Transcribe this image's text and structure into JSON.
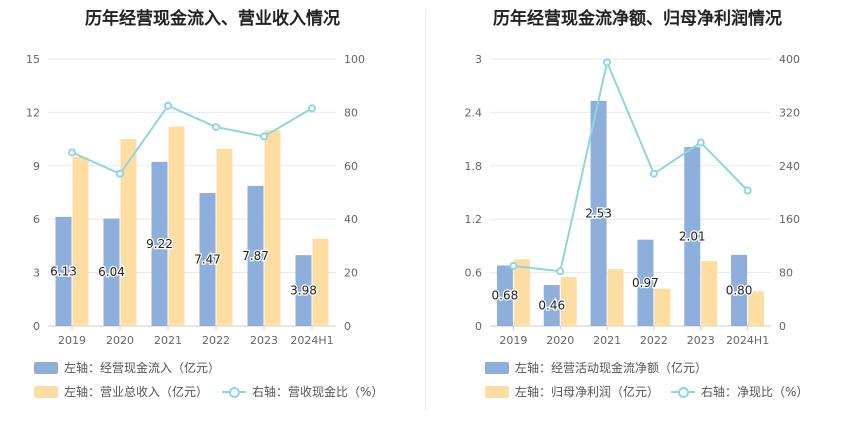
{
  "colors": {
    "bar_primary": "#8eaedc",
    "bar_secondary": "#fedda3",
    "line": "#8fd6dd",
    "grid": "#e6e9f0",
    "axis_text": "#666666"
  },
  "chart_data": [
    {
      "type": "bar",
      "title": "历年经营现金流入、营业收入情况",
      "categories": [
        "2019",
        "2020",
        "2021",
        "2022",
        "2023",
        "2024H1"
      ],
      "left_axis": {
        "min": 0,
        "max": 15,
        "ticks": [
          "0",
          "3",
          "6",
          "9",
          "12",
          "15"
        ]
      },
      "right_axis": {
        "min": 0,
        "max": 100,
        "ticks": [
          "0",
          "20",
          "40",
          "60",
          "80",
          "100"
        ]
      },
      "series": [
        {
          "name": "左轴：经营现金流入（亿元）",
          "kind": "bar",
          "axis": "left",
          "color": "#8eaedc",
          "values": [
            6.13,
            6.04,
            9.22,
            7.47,
            7.87,
            3.98
          ],
          "labels": [
            "6.13",
            "6.04",
            "9.22",
            "7.47",
            "7.87",
            "3.98"
          ]
        },
        {
          "name": "左轴：营业总收入（亿元）",
          "kind": "bar",
          "axis": "left",
          "color": "#fedda3",
          "values": [
            9.5,
            10.5,
            11.2,
            9.95,
            11.0,
            4.9
          ]
        },
        {
          "name": "右轴：营收现金比（%）",
          "kind": "line",
          "axis": "right",
          "color": "#8fd6dd",
          "values": [
            65,
            57,
            82.5,
            74.5,
            71,
            81.5
          ]
        }
      ],
      "legend": [
        "左轴：经营现金流入（亿元）",
        "左轴：营业总收入（亿元）",
        "右轴：营收现金比（%）"
      ],
      "legend_position": "bottom",
      "grid": true
    },
    {
      "type": "bar",
      "title": "历年经营现金流净额、归母净利润情况",
      "categories": [
        "2019",
        "2020",
        "2021",
        "2022",
        "2023",
        "2024H1"
      ],
      "left_axis": {
        "min": 0,
        "max": 3,
        "ticks": [
          "0",
          "0.6",
          "1.2",
          "1.8",
          "2.4",
          "3"
        ]
      },
      "right_axis": {
        "min": 0,
        "max": 400,
        "ticks": [
          "0",
          "80",
          "160",
          "240",
          "320",
          "400"
        ]
      },
      "series": [
        {
          "name": "左轴：经营活动现金流净额（亿元）",
          "kind": "bar",
          "axis": "left",
          "color": "#8eaedc",
          "values": [
            0.68,
            0.46,
            2.53,
            0.97,
            2.01,
            0.8
          ],
          "labels": [
            "0.68",
            "0.46",
            "2.53",
            "0.97",
            "2.01",
            "0.80"
          ]
        },
        {
          "name": "左轴：归母净利润（亿元）",
          "kind": "bar",
          "axis": "left",
          "color": "#fedda3",
          "values": [
            0.75,
            0.55,
            0.64,
            0.42,
            0.73,
            0.39
          ]
        },
        {
          "name": "右轴：净现比（%）",
          "kind": "line",
          "axis": "right",
          "color": "#8fd6dd",
          "values": [
            90,
            82,
            395,
            228,
            275,
            203
          ]
        }
      ],
      "legend": [
        "左轴：经营活动现金流净额（亿元）",
        "左轴：归母净利润（亿元）",
        "右轴：净现比（%）"
      ],
      "legend_position": "bottom",
      "grid": true
    }
  ]
}
